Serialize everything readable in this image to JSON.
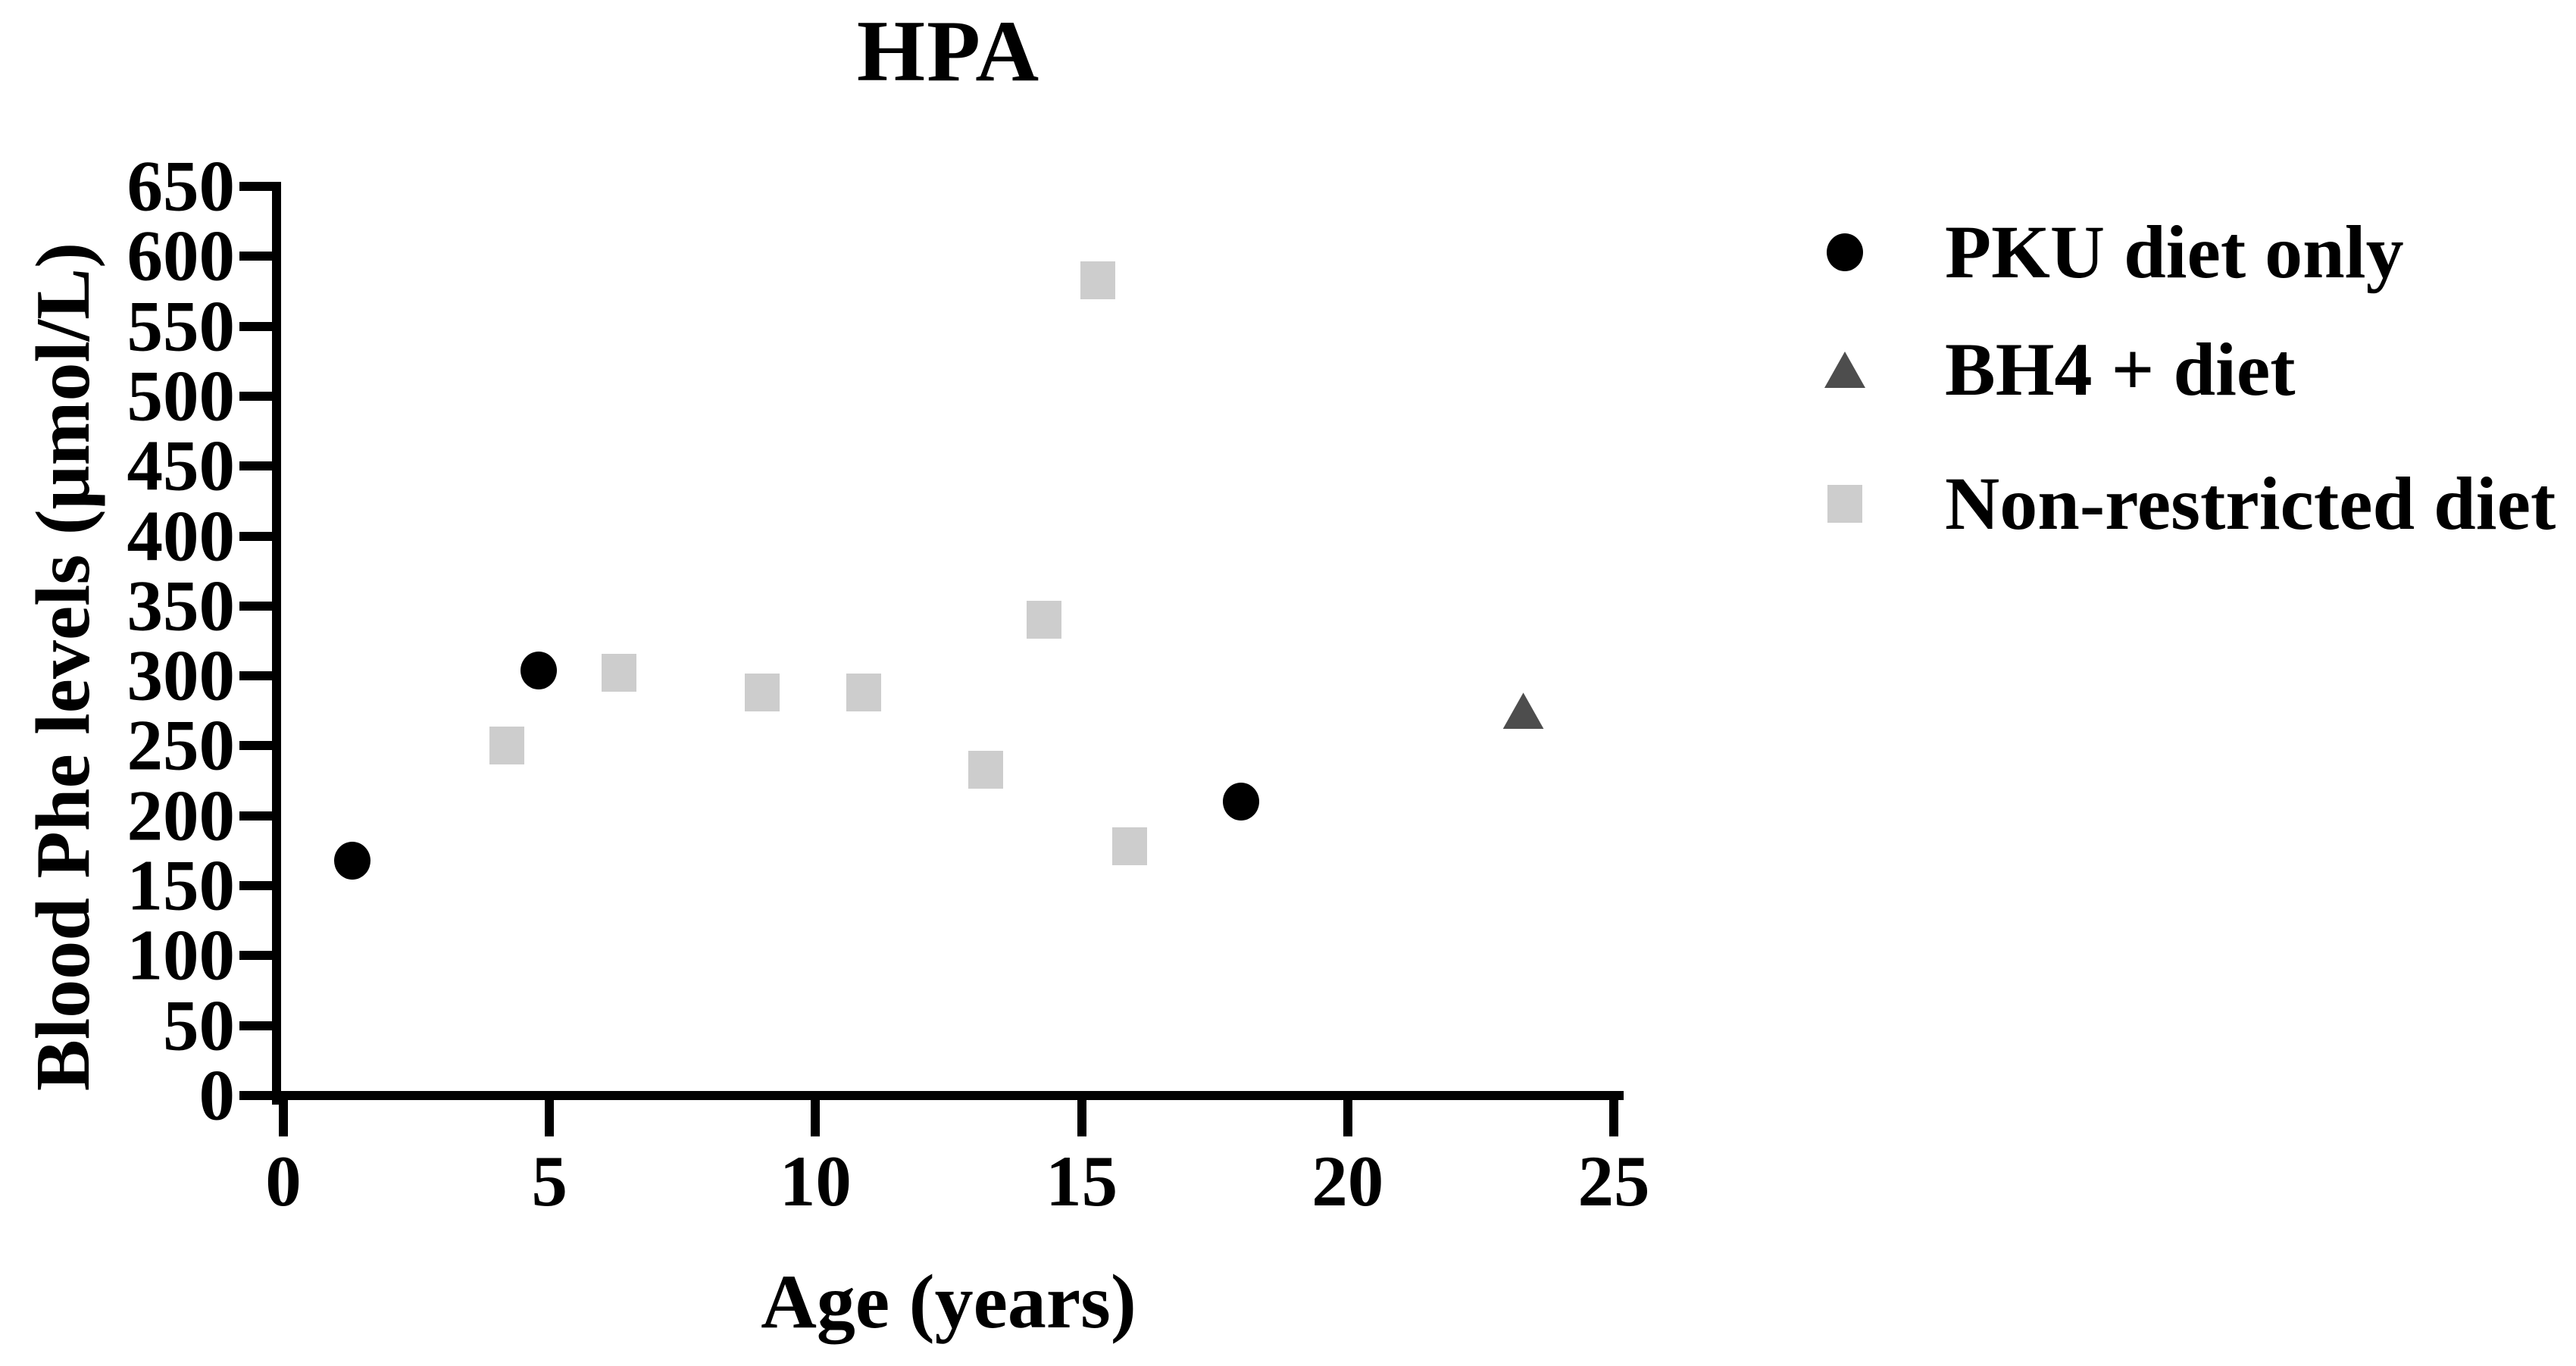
{
  "chart_data": {
    "type": "scatter",
    "title": "HPA",
    "xlabel": "Age (years)",
    "ylabel": "Blood Phe levels (μmol/L)",
    "xlim": [
      0,
      25
    ],
    "ylim": [
      0,
      650
    ],
    "x_ticks": [
      0,
      5,
      10,
      15,
      20,
      25
    ],
    "y_ticks": [
      0,
      50,
      100,
      150,
      200,
      250,
      300,
      350,
      400,
      450,
      500,
      550,
      600,
      650
    ],
    "grid": false,
    "legend_position": "right-of-plot",
    "axis_color": "#000000",
    "background_color": "#ffffff",
    "series": [
      {
        "name": "PKU diet only",
        "marker": "circle",
        "color": "#000000",
        "points": [
          {
            "x": 1.3,
            "y": 168
          },
          {
            "x": 4.8,
            "y": 304
          },
          {
            "x": 18.0,
            "y": 210
          }
        ]
      },
      {
        "name": "BH4 + diet",
        "marker": "triangle",
        "color": "#4d4d4d",
        "points": [
          {
            "x": 23.3,
            "y": 275
          }
        ]
      },
      {
        "name": "Non-restricted diet",
        "marker": "square",
        "color": "#cdcdcd",
        "points": [
          {
            "x": 4.2,
            "y": 250
          },
          {
            "x": 6.3,
            "y": 302
          },
          {
            "x": 9.0,
            "y": 288
          },
          {
            "x": 10.9,
            "y": 288
          },
          {
            "x": 13.2,
            "y": 233
          },
          {
            "x": 14.3,
            "y": 340
          },
          {
            "x": 15.3,
            "y": 583
          },
          {
            "x": 15.9,
            "y": 178
          }
        ]
      }
    ]
  }
}
